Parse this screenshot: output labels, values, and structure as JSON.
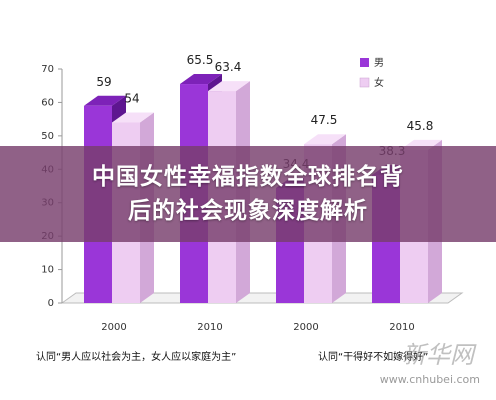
{
  "chart_data": {
    "type": "bar",
    "categories": [
      "2000",
      "2010",
      "2000",
      "2010"
    ],
    "series": [
      {
        "name": "男",
        "values": [
          59,
          65.5,
          34.4,
          38.3
        ]
      },
      {
        "name": "女",
        "values": [
          54,
          63.4,
          47.5,
          45.8
        ]
      }
    ],
    "group_captions": [
      "认同“男人应以社会为主，女人应以家庭为主”",
      "认同“干得好不如嫁得好”"
    ],
    "yticks": [
      0,
      10,
      20,
      30,
      40,
      50,
      60,
      70
    ],
    "ylim": [
      0,
      70
    ],
    "legend_position": "top-right",
    "grid": false,
    "colors": {
      "male_front": "#9a36d8",
      "male_top": "#7d22b8",
      "male_side": "#5e1690",
      "female_front": "#eecdf2",
      "female_top": "#f6e0f8",
      "female_side": "#d2a8d8"
    }
  },
  "overlay": {
    "line1": "中国女性幸福指数全球排名背",
    "line2": "后的社会现象深度解析",
    "color": "#7a3e6c"
  },
  "watermark": {
    "logo": "新华网",
    "url": "www.cnhubei.com"
  }
}
